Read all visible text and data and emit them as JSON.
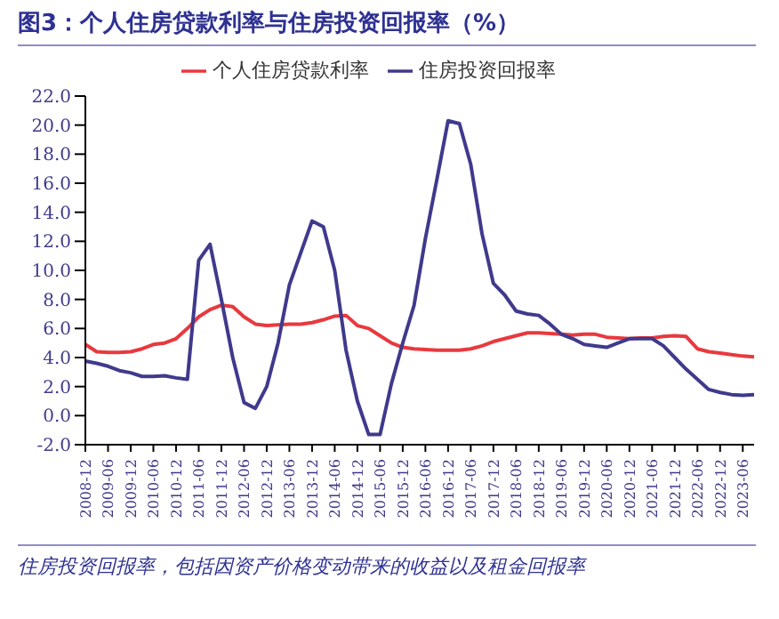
{
  "chart_data": {
    "type": "line",
    "title": "图3：个人住房贷款利率与住房投资回报率（%）",
    "categories": [
      "2008-12",
      null,
      "2009-06",
      null,
      "2009-12",
      null,
      "2010-06",
      null,
      "2010-12",
      null,
      "2011-06",
      null,
      "2011-12",
      null,
      "2012-06",
      null,
      "2012-12",
      null,
      "2013-06",
      null,
      "2013-12",
      null,
      "2014-06",
      null,
      "2014-12",
      null,
      "2015-06",
      null,
      "2015-12",
      null,
      "2016-06",
      null,
      "2016-12",
      null,
      "2017-06",
      null,
      "2017-12",
      null,
      "2018-06",
      null,
      "2018-12",
      null,
      "2019-06",
      null,
      "2019-12",
      null,
      "2020-06",
      null,
      "2020-12",
      null,
      "2021-06",
      null,
      "2021-12",
      null,
      "2022-06",
      null,
      "2022-12",
      null,
      "2023-06",
      null
    ],
    "series": [
      {
        "name": "个人住房贷款利率",
        "color": "#e8393f",
        "values": [
          4.9,
          4.4,
          4.35,
          4.35,
          4.4,
          4.6,
          4.9,
          5.0,
          5.3,
          6.0,
          6.8,
          7.3,
          7.6,
          7.5,
          6.8,
          6.3,
          6.2,
          6.25,
          6.3,
          6.3,
          6.4,
          6.6,
          6.85,
          6.9,
          6.2,
          6.0,
          5.5,
          5.0,
          4.7,
          4.6,
          4.55,
          4.5,
          4.5,
          4.5,
          4.6,
          4.8,
          5.1,
          5.3,
          5.5,
          5.7,
          5.7,
          5.65,
          5.6,
          5.55,
          5.6,
          5.6,
          5.4,
          5.35,
          5.3,
          5.35,
          5.35,
          5.45,
          5.5,
          5.45,
          4.6,
          4.4,
          4.3,
          4.2,
          4.1,
          4.05
        ]
      },
      {
        "name": "住房投资回报率",
        "color": "#3f3a8c",
        "values": [
          3.75,
          3.6,
          3.4,
          3.1,
          2.95,
          2.7,
          2.7,
          2.75,
          2.6,
          2.5,
          10.7,
          11.8,
          8.0,
          4.0,
          0.9,
          0.5,
          2.0,
          5.0,
          9.0,
          11.2,
          13.4,
          13.0,
          10.0,
          4.5,
          1.0,
          -1.3,
          -1.3,
          2.2,
          5.0,
          7.6,
          12.2,
          16.2,
          20.3,
          20.1,
          17.3,
          12.5,
          9.1,
          8.3,
          7.2,
          7.0,
          6.9,
          6.3,
          5.6,
          5.3,
          4.9,
          4.8,
          4.7,
          5.0,
          5.3,
          5.3,
          5.3,
          4.8,
          4.0,
          3.2,
          2.5,
          1.8,
          1.6,
          1.45,
          1.4,
          1.45
        ]
      }
    ],
    "ylim": [
      -2,
      22
    ],
    "yticks": [
      {
        "value": -2,
        "label": "-2.0"
      },
      {
        "value": 0,
        "label": "0.0"
      },
      {
        "value": 2,
        "label": "2.0"
      },
      {
        "value": 4,
        "label": "4.0"
      },
      {
        "value": 6,
        "label": "6.0"
      },
      {
        "value": 8,
        "label": "8.0"
      },
      {
        "value": 10,
        "label": "10.0"
      },
      {
        "value": 12,
        "label": "12.0"
      },
      {
        "value": 14,
        "label": "14.0"
      },
      {
        "value": 16,
        "label": "16.0"
      },
      {
        "value": 18,
        "label": "18.0"
      },
      {
        "value": 20,
        "label": "20.0"
      },
      {
        "value": 22,
        "label": "22.0"
      }
    ],
    "legend": "top",
    "marker": "none",
    "grid": false,
    "annotations": [
      "住房投资回报率，包括因资产价格变动带来的收益以及租金回报率"
    ]
  }
}
